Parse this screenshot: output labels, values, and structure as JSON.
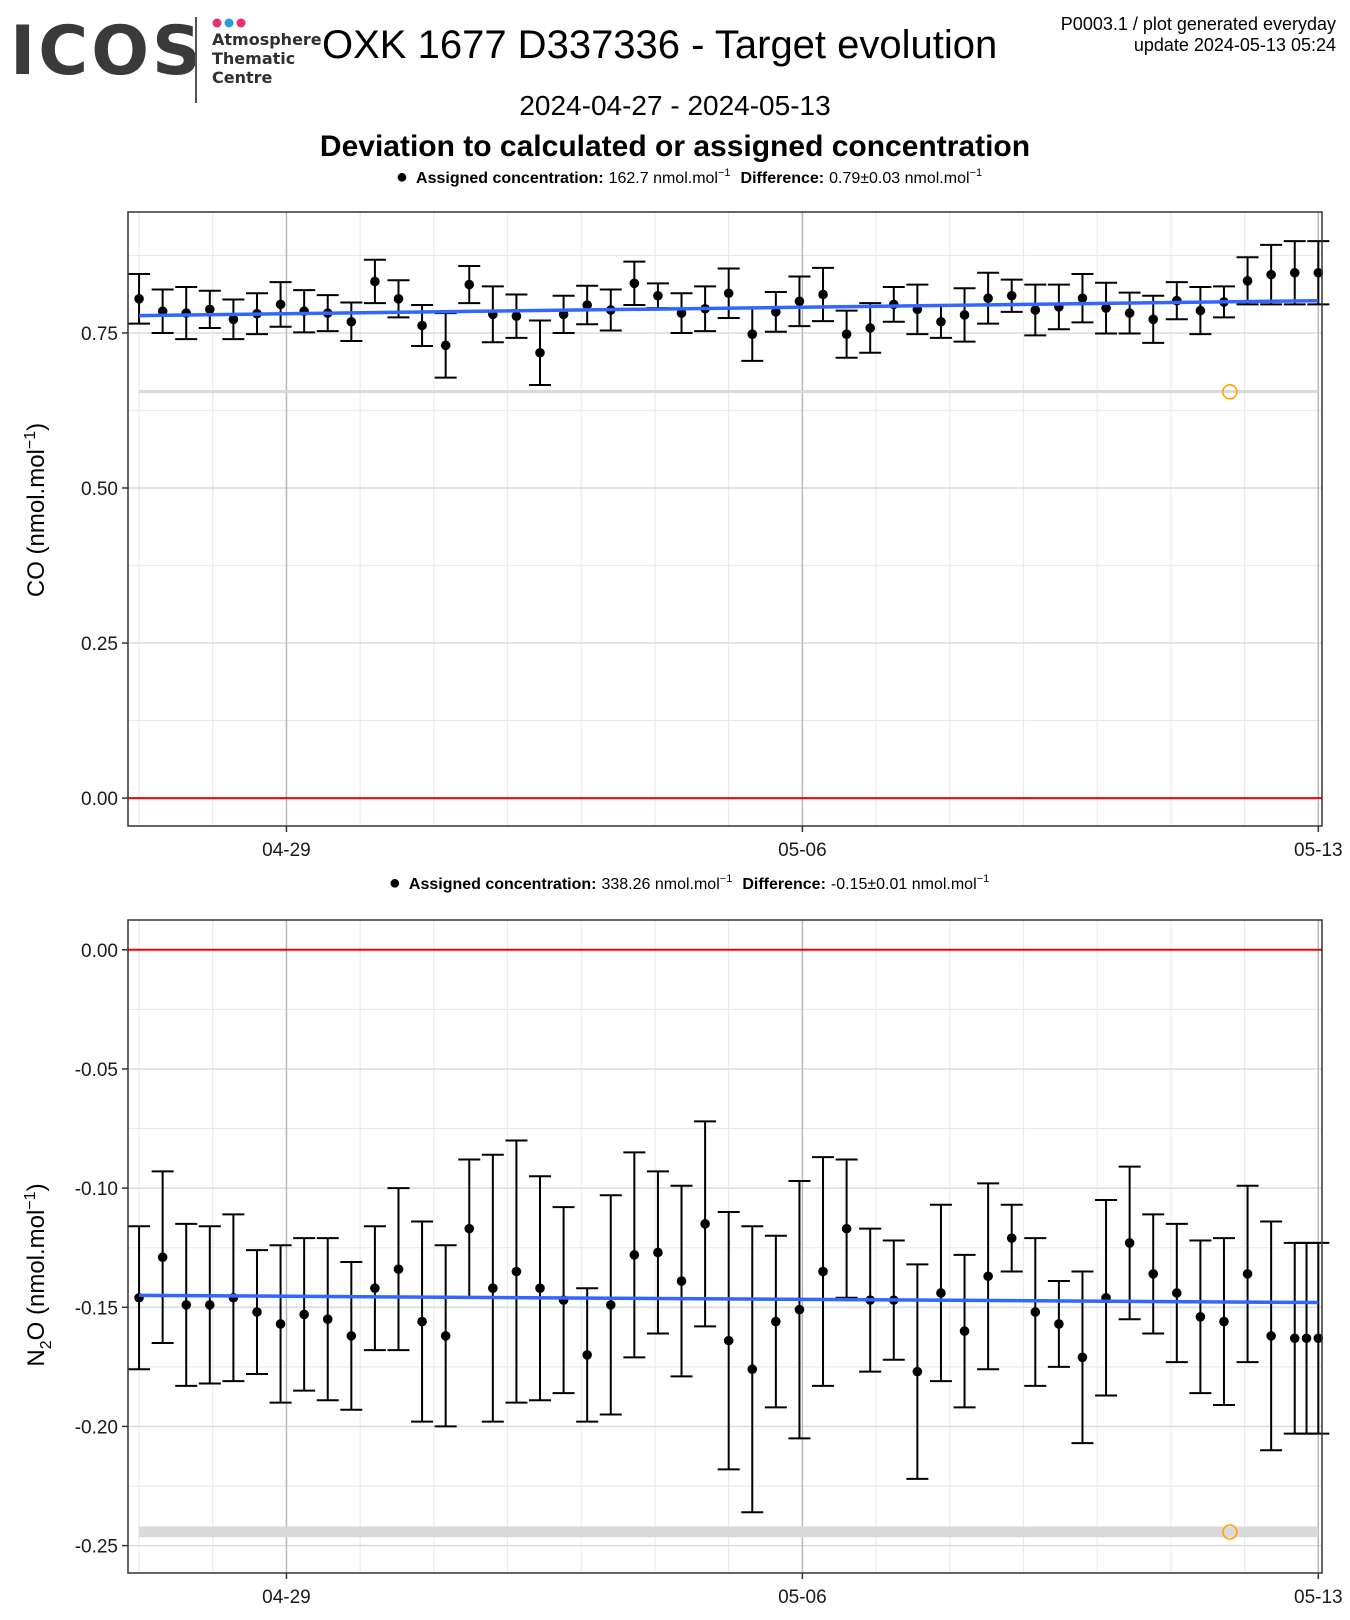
{
  "header": {
    "logo": "ICOS",
    "atc_lines": [
      "Atmosphere",
      "Thematic",
      "Centre"
    ],
    "title": "OXK 1677 D337336 - Target evolution",
    "meta_line1": "P0003.1 / plot generated everyday",
    "meta_line2": "update  2024-05-13 05:24",
    "date_range": "2024-04-27 - 2024-05-13",
    "subtitle": "Deviation to calculated or assigned concentration"
  },
  "colors": {
    "points": "#000000",
    "trend": "#3366ff",
    "zero_line": "#ff0000",
    "reference_band": "#d9d9d9",
    "marker_circle": "#ffa500",
    "logo_dots": [
      "#e6336b",
      "#2a9be0",
      "#e6336b"
    ]
  },
  "chart_data": [
    {
      "type": "scatter",
      "name": "CO",
      "ylabel_main": "CO (nmol.mol",
      "ylabel_sup": "−1",
      "ylabel_end": ")",
      "legend": {
        "label_bold": "Assigned concentration:",
        "assigned_value": "162.7 nmol.mol",
        "unit_sup": "−1",
        "diff_bold": "Difference:",
        "diff_value": "0.79±0.03 nmol.mol",
        "diff_sup": "−1"
      },
      "x_ticks": [
        "04-29",
        "05-06",
        "05-13"
      ],
      "x_tick_days": [
        2,
        9,
        16
      ],
      "x_range": [
        -0.15,
        16.05
      ],
      "ylim": [
        -0.045,
        0.945
      ],
      "y_ticks": [
        0.0,
        0.25,
        0.5,
        0.75
      ],
      "y_tick_labels": [
        "0.00",
        "0.25",
        "0.50",
        "0.75"
      ],
      "x_days": [
        0,
        0.32,
        0.64,
        0.96,
        1.28,
        1.6,
        1.92,
        2.24,
        2.56,
        2.88,
        3.2,
        3.52,
        3.84,
        4.16,
        4.48,
        4.8,
        5.12,
        5.44,
        5.76,
        6.08,
        6.4,
        6.72,
        7.04,
        7.36,
        7.68,
        8.0,
        8.32,
        8.64,
        8.96,
        9.28,
        9.6,
        9.92,
        10.24,
        10.56,
        10.88,
        11.2,
        11.52,
        11.84,
        12.16,
        12.48,
        12.8,
        13.12,
        13.44,
        13.76,
        14.08,
        14.4,
        14.72,
        15.04,
        15.36,
        15.68,
        16.0
      ],
      "y": [
        0.805,
        0.785,
        0.782,
        0.788,
        0.772,
        0.781,
        0.796,
        0.785,
        0.782,
        0.768,
        0.833,
        0.805,
        0.762,
        0.73,
        0.828,
        0.78,
        0.777,
        0.718,
        0.78,
        0.795,
        0.787,
        0.83,
        0.81,
        0.782,
        0.789,
        0.814,
        0.748,
        0.784,
        0.801,
        0.812,
        0.748,
        0.758,
        0.796,
        0.788,
        0.768,
        0.779,
        0.806,
        0.81,
        0.787,
        0.792,
        0.806,
        0.79,
        0.782,
        0.772,
        0.802,
        0.786,
        0.8,
        0.834,
        0.844,
        0.847,
        0.847
      ],
      "err": [
        0.04,
        0.035,
        0.042,
        0.03,
        0.032,
        0.033,
        0.036,
        0.034,
        0.029,
        0.031,
        0.035,
        0.03,
        0.033,
        0.052,
        0.03,
        0.045,
        0.035,
        0.052,
        0.03,
        0.031,
        0.033,
        0.035,
        0.02,
        0.032,
        0.036,
        0.04,
        0.043,
        0.032,
        0.04,
        0.043,
        0.038,
        0.04,
        0.028,
        0.04,
        0.026,
        0.043,
        0.041,
        0.026,
        0.041,
        0.036,
        0.039,
        0.041,
        0.033,
        0.038,
        0.03,
        0.038,
        0.025,
        0.038,
        0.048,
        0.051,
        0.051
      ],
      "trend": [
        [
          0,
          0.778
        ],
        [
          16.0,
          0.802
        ]
      ],
      "reference_band": {
        "x": [
          0,
          16.0
        ],
        "y_low": 0.653,
        "y_high": 0.658
      },
      "marker": {
        "x": 14.8,
        "y": 0.655
      },
      "zero_line": 0
    },
    {
      "type": "scatter",
      "name": "N2O",
      "ylabel_main": "N",
      "ylabel_sub": "2",
      "ylabel_mid": "O (nmol.mol",
      "ylabel_sup": "−1",
      "ylabel_end": ")",
      "legend": {
        "label_bold": "Assigned concentration:",
        "assigned_value": "338.26 nmol.mol",
        "unit_sup": "−1",
        "diff_bold": "Difference:",
        "diff_value": "-0.15±0.01 nmol.mol",
        "diff_sup": "−1"
      },
      "x_ticks": [
        "04-29",
        "05-06",
        "05-13"
      ],
      "x_tick_days": [
        2,
        9,
        16
      ],
      "x_range": [
        -0.15,
        16.05
      ],
      "ylim": [
        -0.2615,
        0.0125
      ],
      "y_ticks": [
        0.0,
        -0.05,
        -0.1,
        -0.15,
        -0.2,
        -0.25
      ],
      "y_tick_labels": [
        "0.00",
        "-0.05",
        "-0.10",
        "-0.15",
        "-0.20",
        "-0.25"
      ],
      "x_days": [
        0,
        0.32,
        0.64,
        0.96,
        1.28,
        1.6,
        1.92,
        2.24,
        2.56,
        2.88,
        3.2,
        3.52,
        3.84,
        4.16,
        4.48,
        4.8,
        5.12,
        5.44,
        5.76,
        6.08,
        6.4,
        6.72,
        7.04,
        7.36,
        7.68,
        8.0,
        8.32,
        8.64,
        8.96,
        9.28,
        9.6,
        9.92,
        10.24,
        10.56,
        10.88,
        11.2,
        11.52,
        11.84,
        12.16,
        12.48,
        12.8,
        13.12,
        13.44,
        13.76,
        14.08,
        14.4,
        14.72,
        15.04,
        15.36,
        15.68,
        15.84,
        16.0
      ],
      "y": [
        -0.146,
        -0.129,
        -0.149,
        -0.149,
        -0.146,
        -0.152,
        -0.157,
        -0.153,
        -0.155,
        -0.162,
        -0.142,
        -0.134,
        -0.156,
        -0.162,
        -0.117,
        -0.142,
        -0.135,
        -0.142,
        -0.147,
        -0.17,
        -0.149,
        -0.128,
        -0.127,
        -0.139,
        -0.115,
        -0.164,
        -0.176,
        -0.156,
        -0.151,
        -0.135,
        -0.117,
        -0.147,
        -0.147,
        -0.177,
        -0.144,
        -0.16,
        -0.137,
        -0.121,
        -0.152,
        -0.157,
        -0.171,
        -0.146,
        -0.123,
        -0.136,
        -0.144,
        -0.154,
        -0.156,
        -0.136,
        -0.162,
        -0.163,
        -0.163,
        -0.163
      ],
      "err": [
        0.03,
        0.036,
        0.034,
        0.033,
        0.035,
        0.026,
        0.033,
        0.032,
        0.034,
        0.031,
        0.026,
        0.034,
        0.042,
        0.038,
        0.029,
        0.056,
        0.055,
        0.047,
        0.039,
        0.028,
        0.046,
        0.043,
        0.034,
        0.04,
        0.043,
        0.054,
        0.06,
        0.036,
        0.054,
        0.048,
        0.029,
        0.03,
        0.025,
        0.045,
        0.037,
        0.032,
        0.039,
        0.014,
        0.031,
        0.018,
        0.036,
        0.041,
        0.032,
        0.025,
        0.029,
        0.032,
        0.035,
        0.037,
        0.048,
        0.04,
        0.04,
        0.04
      ],
      "trend": [
        [
          0,
          -0.145
        ],
        [
          16.0,
          -0.148
        ]
      ],
      "reference_band": {
        "x": [
          0,
          16.0
        ],
        "y_low": -0.2465,
        "y_high": -0.242
      },
      "marker": {
        "x": 14.8,
        "y": -0.2443
      },
      "zero_line": 0
    }
  ]
}
